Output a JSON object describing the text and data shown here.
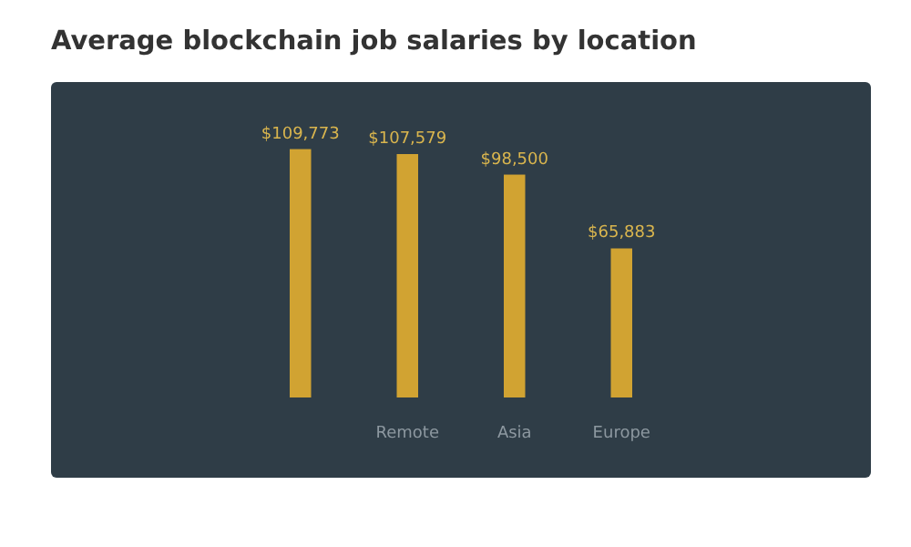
{
  "chart_data": {
    "type": "bar",
    "title": "Average blockchain job salaries by location",
    "categories": [
      null,
      "Remote",
      "Asia",
      "Europe"
    ],
    "values": [
      109773,
      107579,
      98500,
      65883
    ],
    "value_labels": [
      "$109,773",
      "$107,579",
      "$98,500",
      "$65,883"
    ],
    "color": "#d1a332"
  }
}
